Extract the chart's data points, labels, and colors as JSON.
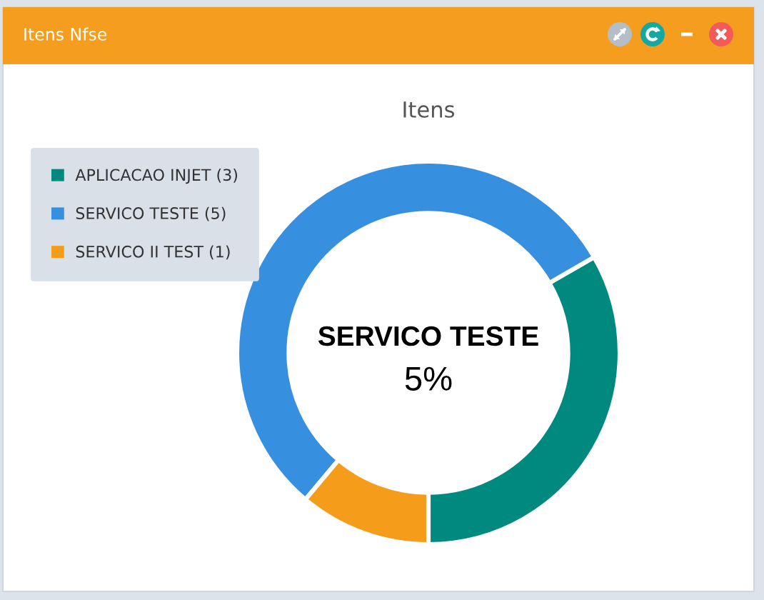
{
  "chart_data": {
    "type": "donut",
    "title": "Itens",
    "categories": [
      "APLICACAO INJET (3)",
      "SERVICO TESTE (5)",
      "SERVICO II TEST (1)"
    ],
    "values": [
      3,
      5,
      1
    ],
    "colors": [
      "#00897f",
      "#378fe0",
      "#f59c1a"
    ],
    "legend": "top left",
    "annotations": [
      "Itens Nfse",
      "SERVICO TESTE",
      "5%"
    ]
  }
}
